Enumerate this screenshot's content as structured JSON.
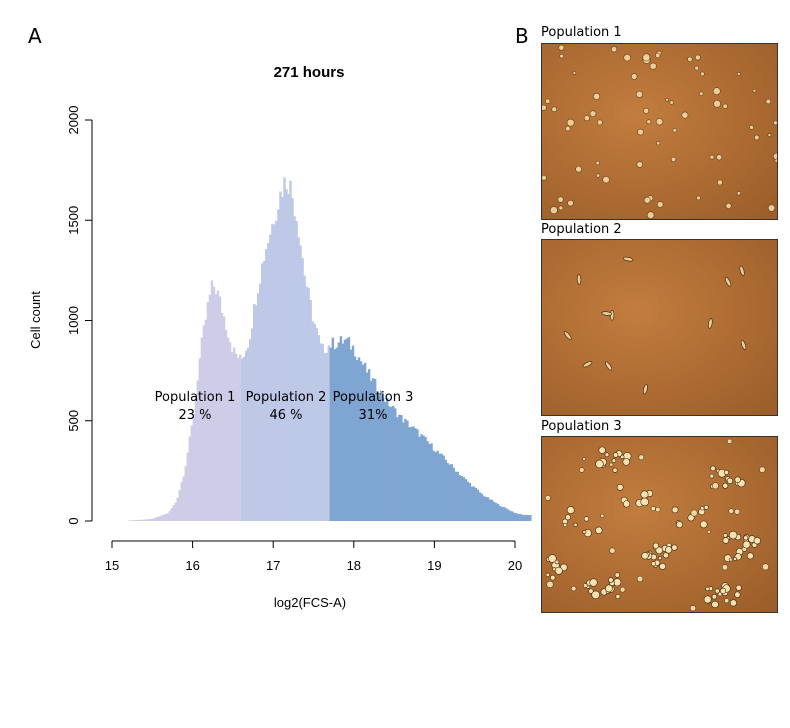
{
  "panels": {
    "a_label": "A",
    "b_label": "B"
  },
  "chart_data": {
    "type": "bar",
    "title": "271 hours",
    "xlabel": "log2(FCS-A)",
    "ylabel": "Cell count",
    "xlim": [
      15,
      20.2
    ],
    "ylim": [
      0,
      2000
    ],
    "xticks": [
      15,
      16,
      17,
      18,
      19,
      20
    ],
    "yticks": [
      0,
      500,
      1000,
      1500,
      2000
    ],
    "grid": false,
    "populations": [
      {
        "name": "Population 1",
        "percent": "23 %",
        "x_range": [
          15.2,
          16.6
        ],
        "color": "#cfcce8"
      },
      {
        "name": "Population 2",
        "percent": "46 %",
        "x_range": [
          16.6,
          17.7
        ],
        "color": "#bdc9e6"
      },
      {
        "name": "Population 3",
        "percent": "31%",
        "x_range": [
          17.7,
          20.2
        ],
        "color": "#7fa6d2"
      }
    ],
    "histogram_profile": [
      [
        15.2,
        2
      ],
      [
        15.5,
        10
      ],
      [
        15.7,
        40
      ],
      [
        15.8,
        100
      ],
      [
        15.9,
        250
      ],
      [
        16.0,
        500
      ],
      [
        16.1,
        850
      ],
      [
        16.2,
        1100
      ],
      [
        16.25,
        1180
      ],
      [
        16.3,
        1150
      ],
      [
        16.4,
        1000
      ],
      [
        16.5,
        850
      ],
      [
        16.6,
        800
      ],
      [
        16.7,
        900
      ],
      [
        16.8,
        1150
      ],
      [
        16.9,
        1350
      ],
      [
        17.0,
        1500
      ],
      [
        17.1,
        1650
      ],
      [
        17.15,
        1700
      ],
      [
        17.2,
        1690
      ],
      [
        17.3,
        1500
      ],
      [
        17.4,
        1200
      ],
      [
        17.5,
        1000
      ],
      [
        17.6,
        850
      ],
      [
        17.7,
        880
      ],
      [
        17.9,
        900
      ],
      [
        18.0,
        860
      ],
      [
        18.2,
        720
      ],
      [
        18.4,
        600
      ],
      [
        18.6,
        510
      ],
      [
        18.8,
        440
      ],
      [
        19.0,
        360
      ],
      [
        19.2,
        280
      ],
      [
        19.4,
        200
      ],
      [
        19.6,
        130
      ],
      [
        19.8,
        80
      ],
      [
        20.0,
        40
      ],
      [
        20.1,
        30
      ],
      [
        20.2,
        30
      ]
    ]
  },
  "micrographs": [
    {
      "label": "Population 1",
      "cell_type": "small-round"
    },
    {
      "label": "Population 2",
      "cell_type": "sparse-elongated"
    },
    {
      "label": "Population 3",
      "cell_type": "clustered"
    }
  ]
}
